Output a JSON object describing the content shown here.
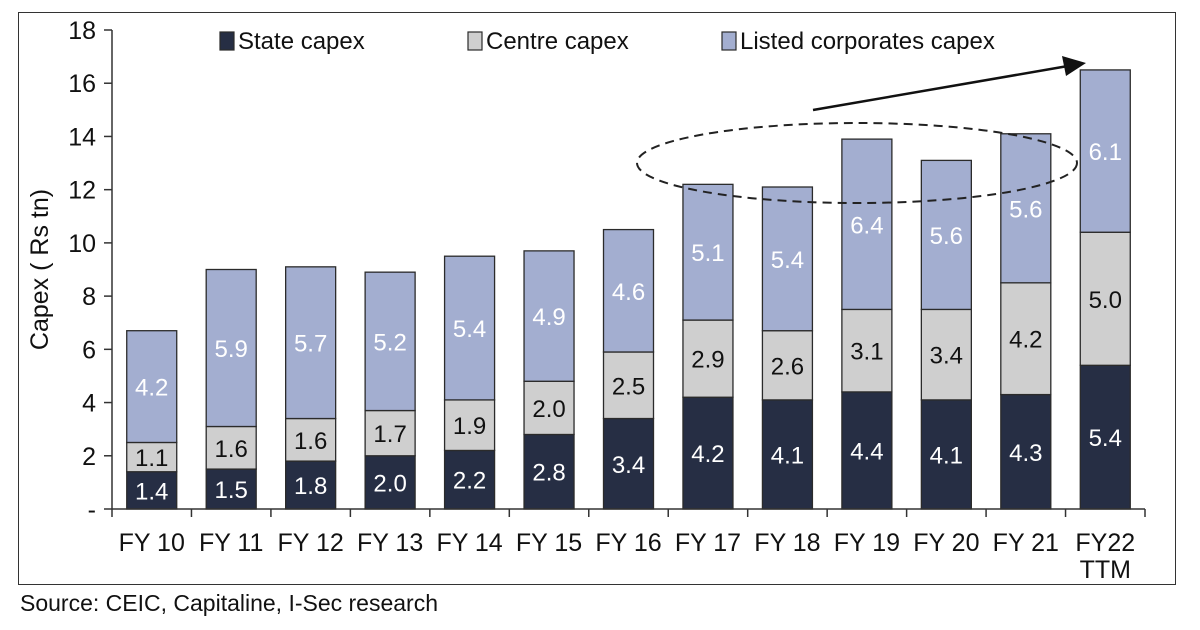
{
  "chart_data": {
    "type": "bar",
    "stacked": true,
    "ylabel": "Capex ( Rs tn)",
    "ylim": [
      0,
      18
    ],
    "yticks": [
      0,
      2,
      4,
      6,
      8,
      10,
      12,
      14,
      16,
      18
    ],
    "ytick_labels": [
      "-",
      "2",
      "4",
      "6",
      "8",
      "10",
      "12",
      "14",
      "16",
      "18"
    ],
    "categories": [
      "FY 10",
      "FY 11",
      "FY 12",
      "FY 13",
      "FY 14",
      "FY 15",
      "FY 16",
      "FY 17",
      "FY 18",
      "FY 19",
      "FY 20",
      "FY 21",
      "FY22\nTTM"
    ],
    "legend_position": "top",
    "series": [
      {
        "name": "State capex",
        "color": "#262e44",
        "label_color": "#ffffff",
        "values": [
          1.4,
          1.5,
          1.8,
          2.0,
          2.2,
          2.8,
          3.4,
          4.2,
          4.1,
          4.4,
          4.1,
          4.3,
          5.4
        ],
        "labels": [
          "1.4",
          "1.5",
          "1.8",
          "2.0",
          "2.2",
          "2.8",
          "3.4",
          "4.2",
          "4.1",
          "4.4",
          "4.1",
          "4.3",
          "5.4"
        ]
      },
      {
        "name": "Centre capex",
        "color": "#cfcfcf",
        "label_color": "#111111",
        "values": [
          1.1,
          1.6,
          1.6,
          1.7,
          1.9,
          2.0,
          2.5,
          2.9,
          2.6,
          3.1,
          3.4,
          4.2,
          5.0
        ],
        "labels": [
          "1.1",
          "1.6",
          "1.6",
          "1.7",
          "1.9",
          "2.0",
          "2.5",
          "2.9",
          "2.6",
          "3.1",
          "3.4",
          "4.2",
          "5.0"
        ]
      },
      {
        "name": "Listed corporates capex",
        "color": "#a3aed0",
        "label_color": "#ffffff",
        "values": [
          4.2,
          5.9,
          5.7,
          5.2,
          5.4,
          4.9,
          4.6,
          5.1,
          5.4,
          6.4,
          5.6,
          5.6,
          6.1
        ],
        "labels": [
          "4.2",
          "5.9",
          "5.7",
          "5.2",
          "5.4",
          "4.9",
          "4.6",
          "5.1",
          "5.4",
          "6.4",
          "5.6",
          "5.6",
          "6.1"
        ]
      }
    ],
    "annotations": [
      "dashed ellipse around FY17-FY21 tops",
      "upward arrow to FY22 TTM"
    ]
  },
  "source": "Source: CEIC, Capitaline, I-Sec research"
}
